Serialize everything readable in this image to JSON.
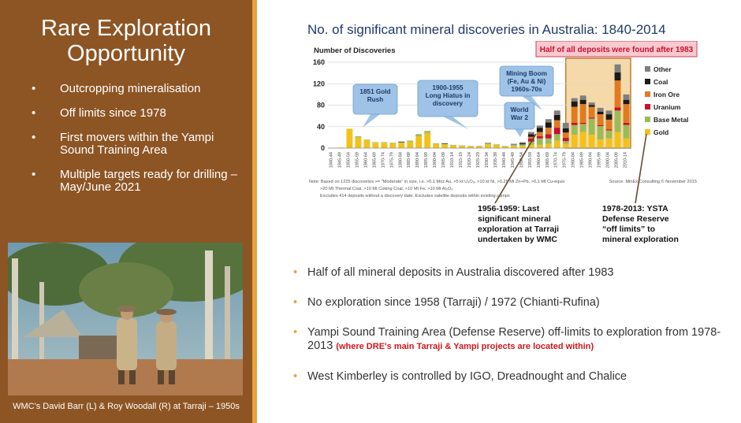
{
  "left_panel": {
    "title": "Rare Exploration Opportunity",
    "bullets": [
      "Outcropping mineralisation",
      "Off limits since 1978",
      "First movers within the Yampi Sound Training Area",
      "Multiple targets ready for drilling – May/June 2021"
    ],
    "photo_caption": "WMC's David Barr (L) & Roy Woodall (R) at Tarraji – 1950s"
  },
  "chart_title": "No. of significant mineral discoveries in Australia: 1840-2014",
  "chart_data": {
    "type": "bar",
    "stacked": true,
    "ylabel": "Number of Discoveries",
    "ylim": [
      0,
      160
    ],
    "yticks": [
      0,
      40,
      80,
      120,
      160
    ],
    "categories": [
      "1840-44",
      "1845-49",
      "1850-54",
      "1855-59",
      "1860-64",
      "1865-69",
      "1870-74",
      "1875-79",
      "1880-84",
      "1885-89",
      "1890-94",
      "1895-99",
      "1900-04",
      "1905-09",
      "1910-14",
      "1915-19",
      "1920-24",
      "1925-29",
      "1930-34",
      "1935-39",
      "1940-44",
      "1945-49",
      "1950-54",
      "1955-59",
      "1960-64",
      "1965-69",
      "1970-74",
      "1975-79",
      "1980-84",
      "1985-89",
      "1990-94",
      "1995-99",
      "2000-04",
      "2005-09",
      "2010-14"
    ],
    "colors": {
      "Other": "#7f7f7f",
      "Coal": "#1a1a1a",
      "Iron Ore": "#e07b22",
      "Uranium": "#c8102e",
      "Base Metal": "#9bbb59",
      "Gold": "#f2c21b"
    },
    "series": [
      {
        "name": "Gold",
        "values": [
          0,
          1,
          36,
          20,
          15,
          10,
          10,
          9,
          10,
          12,
          22,
          28,
          8,
          7,
          5,
          4,
          3,
          3,
          7,
          6,
          3,
          4,
          4,
          6,
          6,
          8,
          14,
          8,
          25,
          30,
          25,
          16,
          18,
          30,
          18
        ]
      },
      {
        "name": "Base Metal",
        "values": [
          0,
          0,
          0,
          2,
          1,
          1,
          1,
          1,
          1,
          2,
          4,
          4,
          1,
          1,
          1,
          1,
          1,
          1,
          2,
          1,
          1,
          2,
          3,
          6,
          12,
          10,
          12,
          5,
          18,
          15,
          30,
          25,
          15,
          40,
          25
        ]
      },
      {
        "name": "Uranium",
        "values": [
          0,
          0,
          0,
          0,
          0,
          0,
          0,
          0,
          0,
          0,
          0,
          0,
          0,
          0,
          0,
          0,
          0,
          0,
          0,
          0,
          0,
          0,
          0,
          6,
          4,
          8,
          12,
          6,
          4,
          2,
          2,
          2,
          2,
          6,
          4
        ]
      },
      {
        "name": "Iron Ore",
        "values": [
          0,
          0,
          0,
          0,
          0,
          0,
          0,
          0,
          0,
          0,
          0,
          0,
          0,
          0,
          0,
          0,
          0,
          0,
          0,
          0,
          0,
          0,
          0,
          3,
          8,
          12,
          14,
          10,
          30,
          35,
          20,
          20,
          18,
          50,
          35
        ]
      },
      {
        "name": "Coal",
        "values": [
          0,
          0,
          0,
          0,
          0,
          0,
          0,
          0,
          1,
          0,
          0,
          0,
          0,
          1,
          0,
          0,
          0,
          0,
          0,
          0,
          0,
          0,
          2,
          5,
          8,
          10,
          10,
          8,
          10,
          8,
          3,
          5,
          10,
          15,
          8
        ]
      },
      {
        "name": "Other",
        "values": [
          0,
          0,
          0,
          0,
          0,
          0,
          0,
          0,
          0,
          0,
          0,
          0,
          0,
          0,
          0,
          0,
          0,
          0,
          1,
          0,
          0,
          2,
          2,
          4,
          4,
          6,
          8,
          10,
          6,
          8,
          5,
          7,
          7,
          15,
          10
        ]
      }
    ],
    "legend_position": "right",
    "highlight_banner": "Half of all deposits were found after 1983",
    "callouts": [
      "1851 Gold Rush",
      "1900-1955 Long Hiatus in discovery",
      "Mining Boom (Fe, Au & Ni) 1960s-70s",
      "World War 2"
    ],
    "annotations": [
      "1956-1959: Last significant mineral exploration at Tarraji undertaken by WMC",
      "1978-2013: YSTA Defense Reserve “off limits” to mineral exploration"
    ],
    "note_lines": [
      "Note: Based on 1225 discoveries >= \"Moderate\" in size, i.e. >0.1 Moz Au, >5 kt U₃O₈, >10 kt Ni, >0.25 Mt Zn+Pb, >0.1 Mt Cu-equiv",
      ">20 Mt Thermal Coal, >10 Mt Coking Coal, >10 Mt Fe, >10 Mt Al₂O₃",
      "Excludes 414 deposits without a discovery date. Excludes satellite deposits within existing camps"
    ],
    "source": "Source: MinEx Consulting © November 2015"
  },
  "right_bullets": [
    {
      "text": "Half of all mineral deposits in Australia discovered after 1983",
      "note": ""
    },
    {
      "text": "No exploration since 1958 (Tarraji) / 1972 (Chianti-Rufina)",
      "note": ""
    },
    {
      "text": "Yampi Sound Training Area (Defense Reserve) off-limits to exploration from 1978-2013",
      "note": "(where DRE's main Tarraji & Yampi projects are located within)"
    },
    {
      "text": "West Kimberley is controlled by IGO, Dreadnought and Chalice",
      "note": ""
    }
  ]
}
